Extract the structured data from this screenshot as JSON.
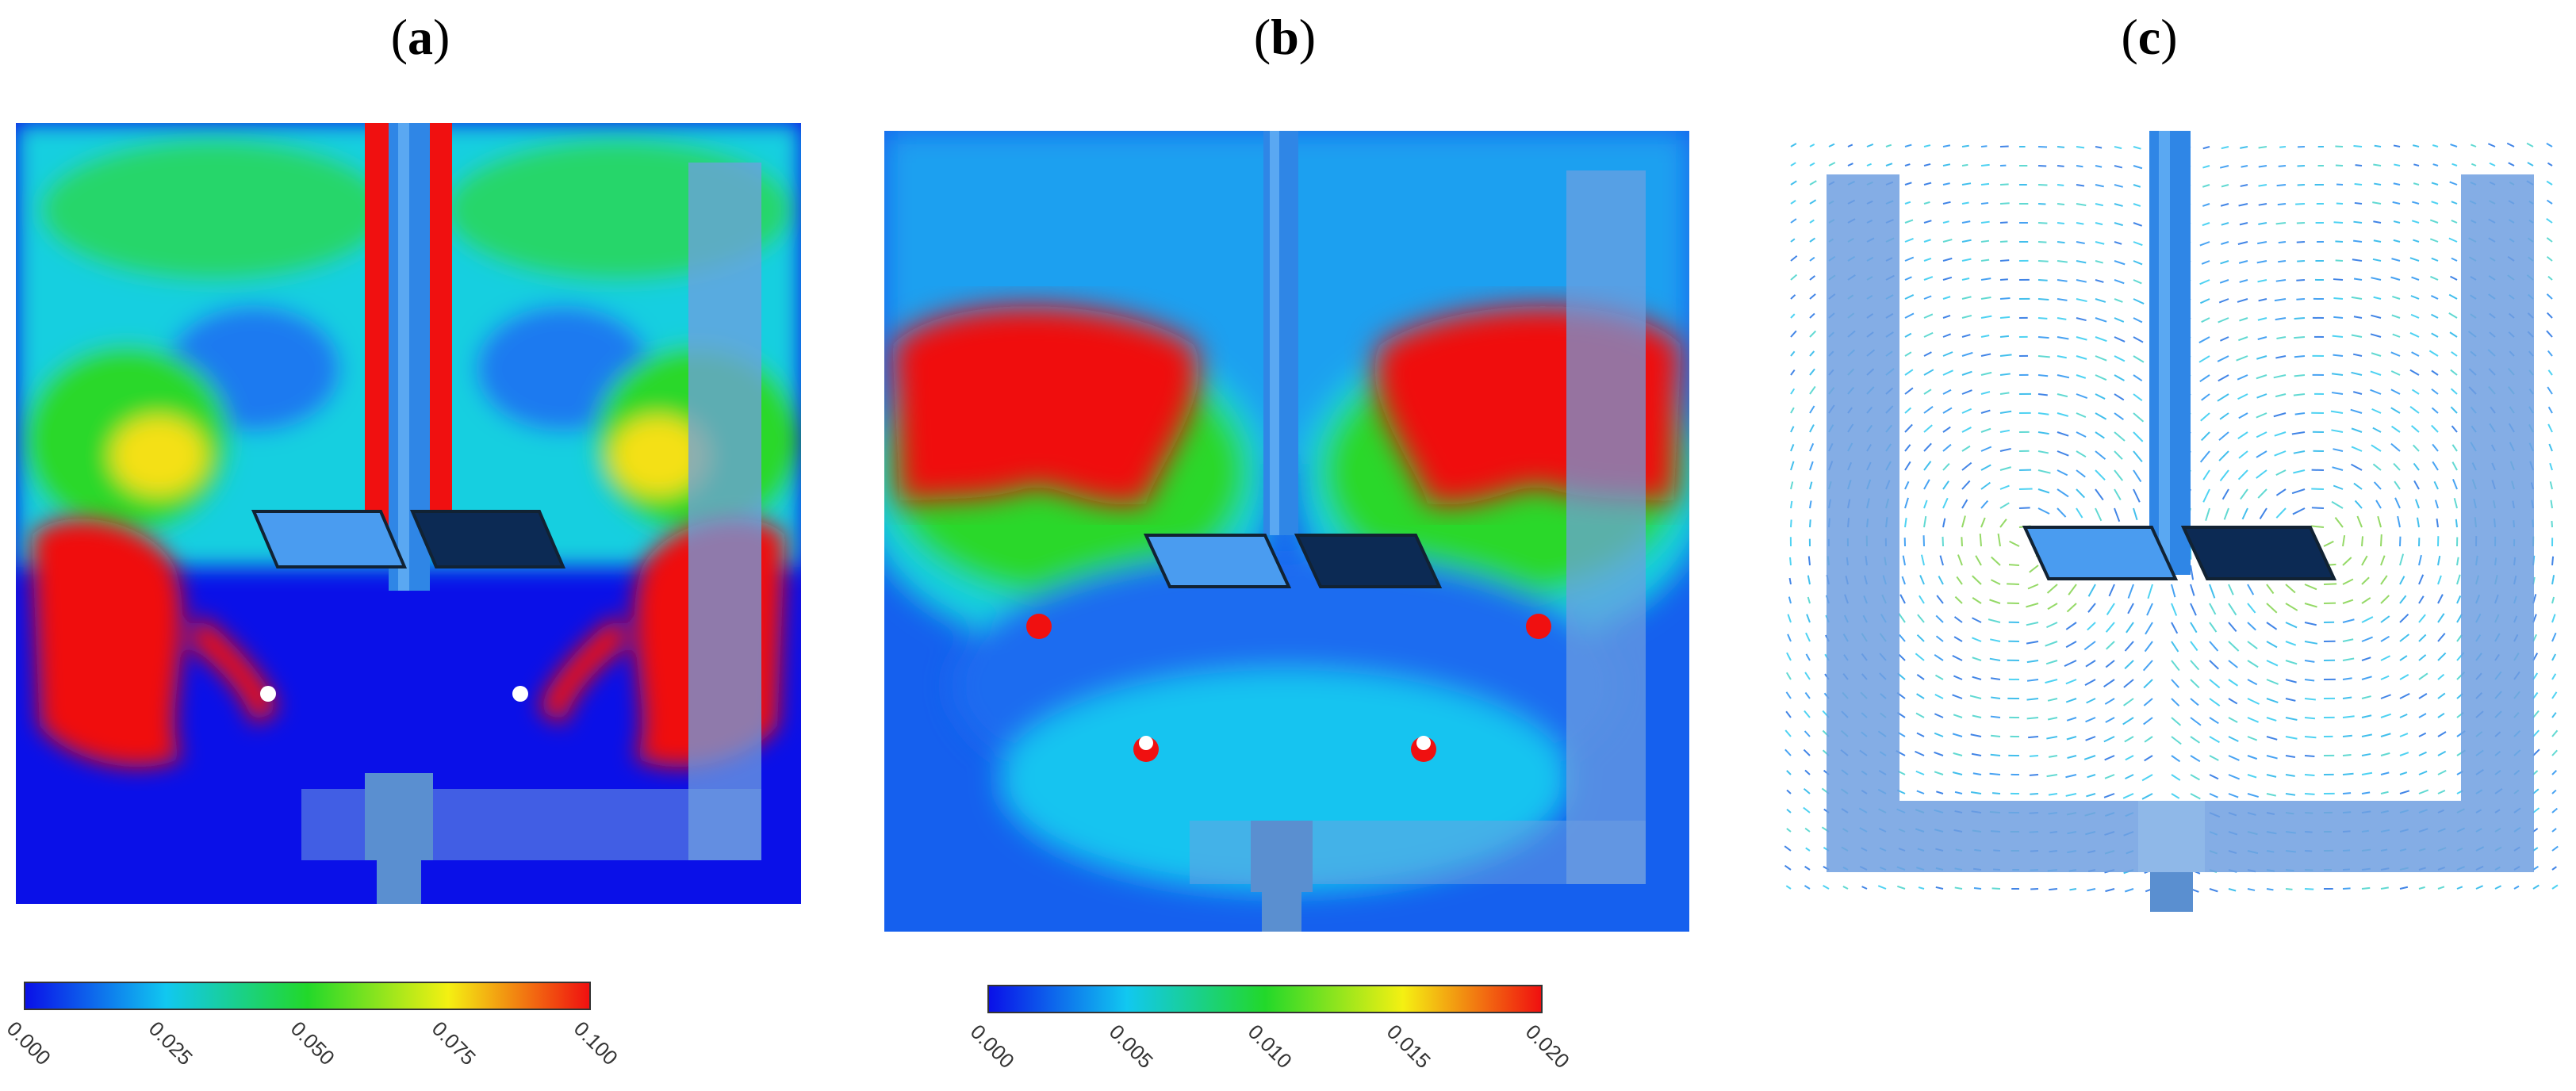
{
  "panels": [
    {
      "label_open": "(",
      "label_letter": "a",
      "label_close": ")"
    },
    {
      "label_open": "(",
      "label_letter": "b",
      "label_close": ")"
    },
    {
      "label_open": "(",
      "label_letter": "c",
      "label_close": ")"
    }
  ],
  "colorbar_a": {
    "min": 0.0,
    "max": 0.1,
    "ticks": [
      "0.000",
      "0.025",
      "0.050",
      "0.075",
      "0.100"
    ]
  },
  "colorbar_b": {
    "min": 0.0,
    "max": 0.02,
    "ticks": [
      "0.000",
      "0.005",
      "0.010",
      "0.015",
      "0.020"
    ]
  },
  "colors": {
    "low": "#0a10e8",
    "mid_low": "#11c8f0",
    "mid": "#22d82a",
    "mid_high": "#f4f012",
    "high": "#f01010",
    "baffle": "#6f9fe0",
    "impeller": "#3a8fe8"
  }
}
